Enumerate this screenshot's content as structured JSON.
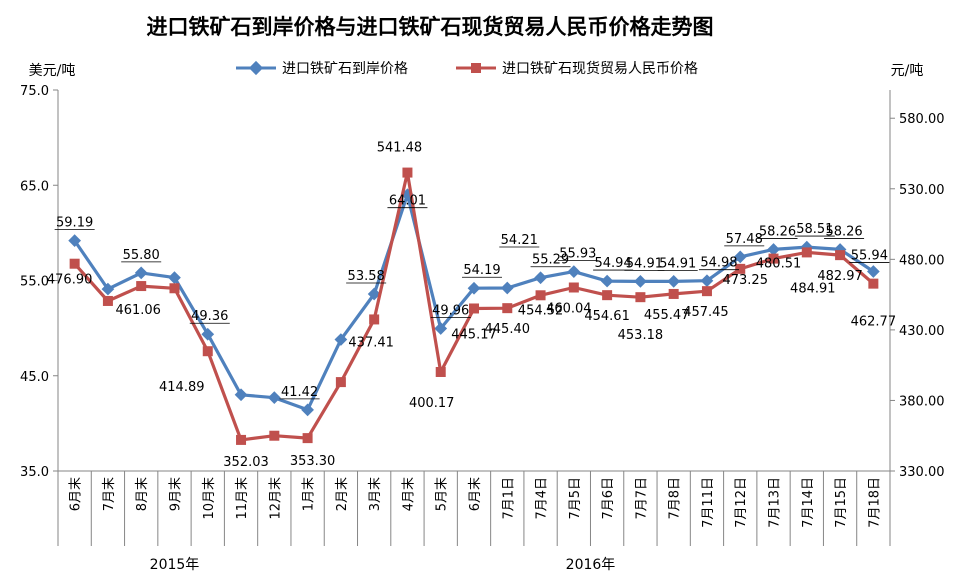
{
  "chart_data": {
    "type": "line",
    "title": "进口铁矿石到岸价格与进口铁矿石现货贸易人民币价格走势图",
    "ylabel_left": "美元/吨",
    "ylabel_right": "元/吨",
    "ylim_left": [
      35.0,
      75.0
    ],
    "yticks_left": [
      "35.0",
      "45.0",
      "55.0",
      "65.0",
      "75.0"
    ],
    "ylim_right": [
      330.0,
      600.0
    ],
    "yticks_right": [
      "330.00",
      "380.00",
      "430.00",
      "480.00",
      "530.00",
      "580.00"
    ],
    "grid": false,
    "legend_position": "top-center",
    "categories": [
      "6月末",
      "7月末",
      "8月末",
      "9月末",
      "10月末",
      "11月末",
      "12月末",
      "1月末",
      "2月末",
      "3月末",
      "4月末",
      "5月末",
      "6月末",
      "7月1日",
      "7月4日",
      "7月5日",
      "7月6日",
      "7月7日",
      "7月8日",
      "7月11日",
      "7月12日",
      "7月13日",
      "7月14日",
      "7月15日",
      "7月18日"
    ],
    "year_groups": [
      {
        "label": "2015年",
        "count": 7
      },
      {
        "label": "2016年",
        "count": 18
      }
    ],
    "series": [
      {
        "name": "进口铁矿石到岸价格",
        "axis": "left",
        "color": "#4F81BD",
        "marker": "diamond",
        "values": [
          59.19,
          54.1,
          55.8,
          55.3,
          49.36,
          43.0,
          42.7,
          41.42,
          48.8,
          53.58,
          64.01,
          49.96,
          54.19,
          54.21,
          55.29,
          55.93,
          54.94,
          54.91,
          54.91,
          54.98,
          57.48,
          58.26,
          58.51,
          58.26,
          55.94
        ],
        "labels": [
          "59.19",
          "",
          "55.80",
          "",
          "49.36",
          "",
          "",
          "41.42",
          "",
          "53.58",
          "64.01",
          "49.96",
          "54.19",
          "54.21",
          "55.29",
          "55.93",
          "54.94",
          "54.91",
          "54.91",
          "54.98",
          "57.48",
          "58.26",
          "58.51",
          "58.26",
          "55.94"
        ]
      },
      {
        "name": "进口铁矿石现货贸易人民币价格",
        "axis": "right",
        "color": "#C0504D",
        "marker": "square",
        "values": [
          476.9,
          450.5,
          461.06,
          459.5,
          414.89,
          352.03,
          355.0,
          353.3,
          393.0,
          437.41,
          541.48,
          400.17,
          445.17,
          445.4,
          454.52,
          460.04,
          454.61,
          453.18,
          455.47,
          457.45,
          473.25,
          480.51,
          484.91,
          482.97,
          462.77
        ],
        "labels": [
          "476.90",
          "",
          "461.06",
          "",
          "414.89",
          "352.03",
          "",
          "353.30",
          "",
          "437.41",
          "541.48",
          "400.17",
          "445.17",
          "445.40",
          "454.52",
          "460.04",
          "454.61",
          "453.18",
          "455.47",
          "457.45",
          "473.25",
          "480.51",
          "484.91",
          "482.97",
          "462.77"
        ]
      }
    ]
  }
}
